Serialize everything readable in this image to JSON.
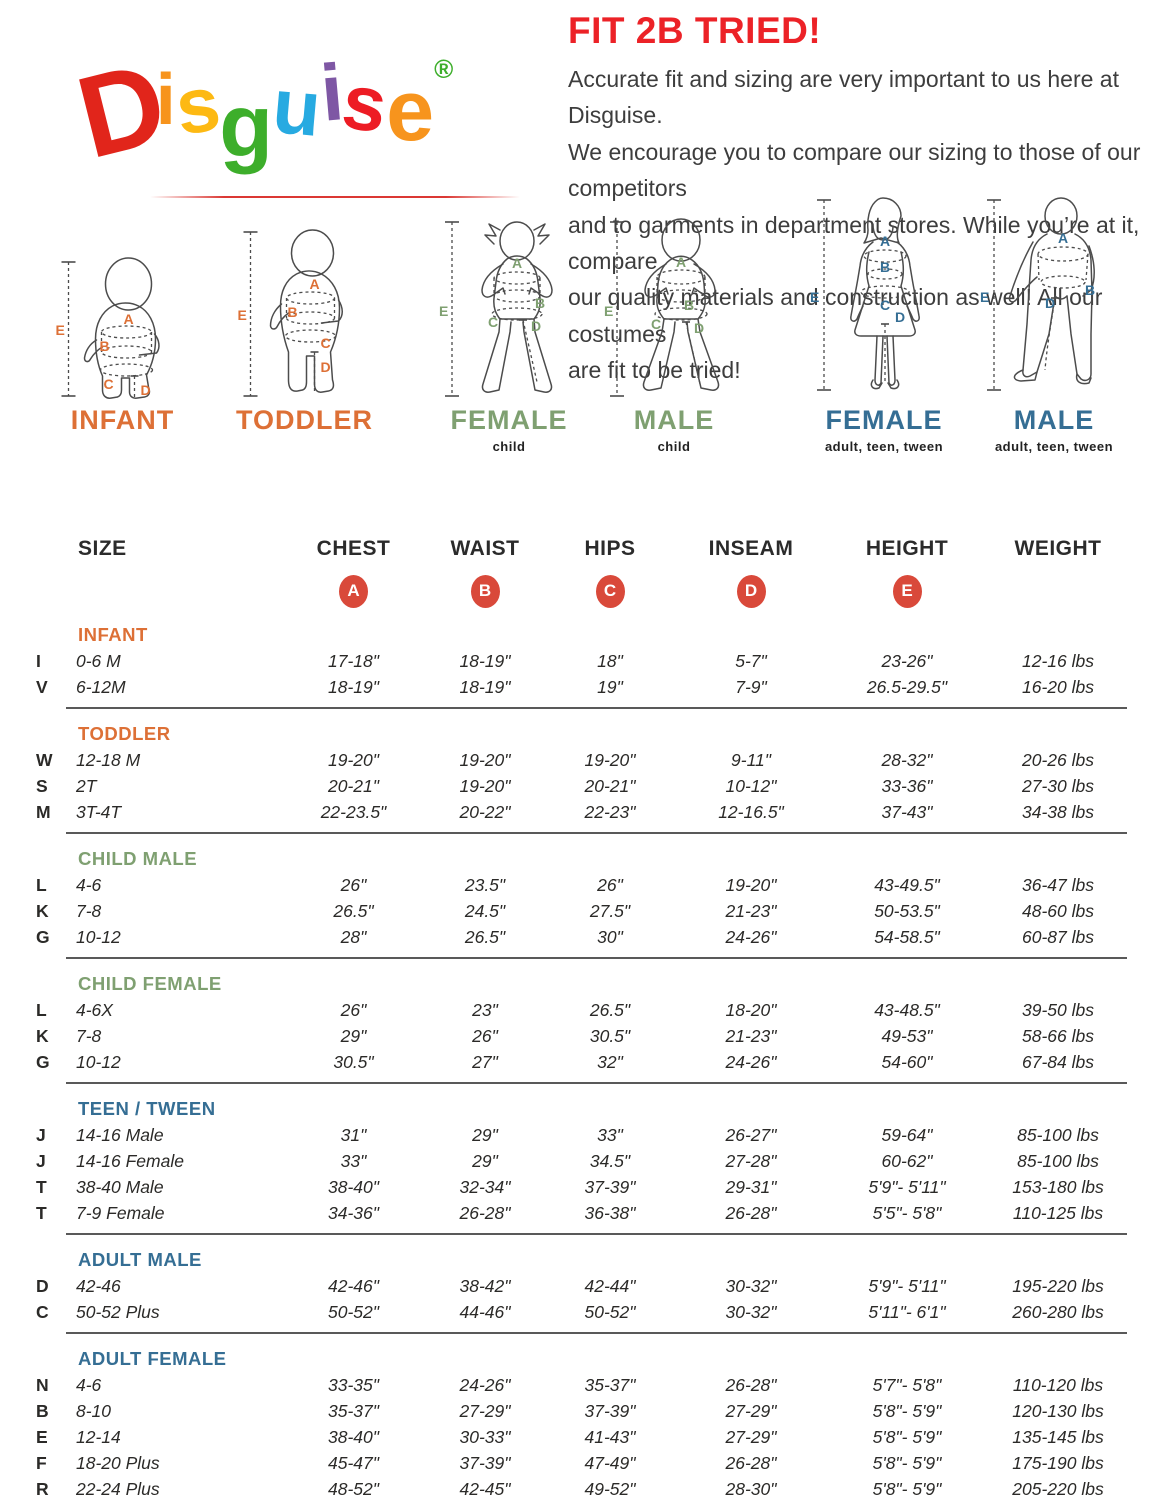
{
  "logo": {
    "letters": [
      {
        "ch": "D",
        "color": "#e1251b"
      },
      {
        "ch": "i",
        "color": "#f7941d"
      },
      {
        "ch": "s",
        "color": "#fdb913"
      },
      {
        "ch": "g",
        "color": "#3dae2b"
      },
      {
        "ch": "u",
        "color": "#27aae1"
      },
      {
        "ch": "i",
        "color": "#7e57a4"
      },
      {
        "ch": "s",
        "color": "#ed1c24"
      },
      {
        "ch": "e",
        "color": "#f7941d"
      }
    ],
    "reg": "®",
    "reg_color": "#3dae2b"
  },
  "intro": {
    "title": "FIT 2B TRIED!",
    "lines": [
      "Accurate fit and sizing are very important to us here at Disguise.",
      "We encourage you to compare our sizing to those of our competitors",
      "and to garments in department stores. While you’re at it, compare",
      "our quality materials and construction as well! All our costumes",
      "are fit to be tried!"
    ],
    "title_color": "#ec2227"
  },
  "measures": {
    "a": "A",
    "b": "B",
    "c": "C",
    "d": "D",
    "e": "E"
  },
  "figures": [
    {
      "label": "INFANT",
      "sublabel": "",
      "color": "#dd7036"
    },
    {
      "label": "TODDLER",
      "sublabel": "",
      "color": "#dd7036"
    },
    {
      "label": "FEMALE",
      "sublabel": "child",
      "color": "#7fa071"
    },
    {
      "label": "MALE",
      "sublabel": "child",
      "color": "#7fa071"
    },
    {
      "label": "FEMALE",
      "sublabel": "adult, teen, tween",
      "color": "#356e94"
    },
    {
      "label": "MALE",
      "sublabel": "adult, teen, tween",
      "color": "#356e94"
    }
  ],
  "table": {
    "columns": [
      "SIZE",
      "CHEST",
      "WAIST",
      "HIPS",
      "INSEAM",
      "HEIGHT",
      "WEIGHT"
    ],
    "badges": [
      "A",
      "B",
      "C",
      "D",
      "E"
    ],
    "badge_color": "#d9493a",
    "sections": [
      {
        "name": "INFANT",
        "color": "#dd7036",
        "rows": [
          {
            "code": "I",
            "cells": [
              "0-6 M",
              "17-18\"",
              "18-19\"",
              "18\"",
              "5-7\"",
              "23-26\"",
              "12-16 lbs"
            ]
          },
          {
            "code": "V",
            "cells": [
              "6-12M",
              "18-19\"",
              "18-19\"",
              "19\"",
              "7-9\"",
              "26.5-29.5\"",
              "16-20 lbs"
            ]
          }
        ]
      },
      {
        "name": "TODDLER",
        "color": "#dd7036",
        "rows": [
          {
            "code": "W",
            "cells": [
              "12-18 M",
              "19-20\"",
              "19-20\"",
              "19-20\"",
              "9-11\"",
              "28-32\"",
              "20-26 lbs"
            ]
          },
          {
            "code": "S",
            "cells": [
              "2T",
              "20-21\"",
              "19-20\"",
              "20-21\"",
              "10-12\"",
              "33-36\"",
              "27-30 lbs"
            ]
          },
          {
            "code": "M",
            "cells": [
              "3T-4T",
              "22-23.5\"",
              "20-22\"",
              "22-23\"",
              "12-16.5\"",
              "37-43\"",
              "34-38 lbs"
            ]
          }
        ]
      },
      {
        "name": "CHILD MALE",
        "color": "#7fa071",
        "rows": [
          {
            "code": "L",
            "cells": [
              "4-6",
              "26\"",
              "23.5\"",
              "26\"",
              "19-20\"",
              "43-49.5\"",
              "36-47 lbs"
            ]
          },
          {
            "code": "K",
            "cells": [
              "7-8",
              "26.5\"",
              "24.5\"",
              "27.5\"",
              "21-23\"",
              "50-53.5\"",
              "48-60 lbs"
            ]
          },
          {
            "code": "G",
            "cells": [
              "10-12",
              "28\"",
              "26.5\"",
              "30\"",
              "24-26\"",
              "54-58.5\"",
              "60-87 lbs"
            ]
          }
        ]
      },
      {
        "name": "CHILD FEMALE",
        "color": "#7fa071",
        "rows": [
          {
            "code": "L",
            "cells": [
              "4-6X",
              "26\"",
              "23\"",
              "26.5\"",
              "18-20\"",
              "43-48.5\"",
              "39-50 lbs"
            ]
          },
          {
            "code": "K",
            "cells": [
              "7-8",
              "29\"",
              "26\"",
              "30.5\"",
              "21-23\"",
              "49-53\"",
              "58-66 lbs"
            ]
          },
          {
            "code": "G",
            "cells": [
              "10-12",
              "30.5\"",
              "27\"",
              "32\"",
              "24-26\"",
              "54-60\"",
              "67-84 lbs"
            ]
          }
        ]
      },
      {
        "name": "TEEN / TWEEN",
        "color": "#356e94",
        "rows": [
          {
            "code": "J",
            "cells": [
              "14-16 Male",
              "31\"",
              "29\"",
              "33\"",
              "26-27\"",
              "59-64\"",
              "85-100 lbs"
            ]
          },
          {
            "code": "J",
            "cells": [
              "14-16 Female",
              "33\"",
              "29\"",
              "34.5\"",
              "27-28\"",
              "60-62\"",
              "85-100 lbs"
            ]
          },
          {
            "code": "T",
            "cells": [
              "38-40 Male",
              "38-40\"",
              "32-34\"",
              "37-39\"",
              "29-31\"",
              "5'9\"- 5'11\"",
              "153-180 lbs"
            ]
          },
          {
            "code": "T",
            "cells": [
              "7-9 Female",
              "34-36\"",
              "26-28\"",
              "36-38\"",
              "26-28\"",
              "5'5\"- 5'8\"",
              "110-125 lbs"
            ]
          }
        ]
      },
      {
        "name": "ADULT MALE",
        "color": "#356e94",
        "rows": [
          {
            "code": "D",
            "cells": [
              "42-46",
              "42-46\"",
              "38-42\"",
              "42-44\"",
              "30-32\"",
              "5'9\"- 5'11\"",
              "195-220 lbs"
            ]
          },
          {
            "code": "C",
            "cells": [
              "50-52 Plus",
              "50-52\"",
              "44-46\"",
              "50-52\"",
              "30-32\"",
              "5'11\"- 6'1\"",
              "260-280 lbs"
            ]
          }
        ]
      },
      {
        "name": "ADULT FEMALE",
        "color": "#356e94",
        "rows": [
          {
            "code": "N",
            "cells": [
              "4-6",
              "33-35\"",
              "24-26\"",
              "35-37\"",
              "26-28\"",
              "5'7\"- 5'8\"",
              "110-120 lbs"
            ]
          },
          {
            "code": "B",
            "cells": [
              "8-10",
              "35-37\"",
              "27-29\"",
              "37-39\"",
              "27-29\"",
              "5'8\"- 5'9\"",
              "120-130 lbs"
            ]
          },
          {
            "code": "E",
            "cells": [
              "12-14",
              "38-40\"",
              "30-33\"",
              "41-43\"",
              "27-29\"",
              "5'8\"- 5'9\"",
              "135-145 lbs"
            ]
          },
          {
            "code": "F",
            "cells": [
              "18-20 Plus",
              "45-47\"",
              "37-39\"",
              "47-49\"",
              "26-28\"",
              "5'8\"- 5'9\"",
              "175-190 lbs"
            ]
          },
          {
            "code": "R",
            "cells": [
              "22-24 Plus",
              "48-52\"",
              "42-45\"",
              "49-52\"",
              "28-30\"",
              "5'8\"- 5'9\"",
              "205-220 lbs"
            ]
          }
        ]
      }
    ]
  }
}
